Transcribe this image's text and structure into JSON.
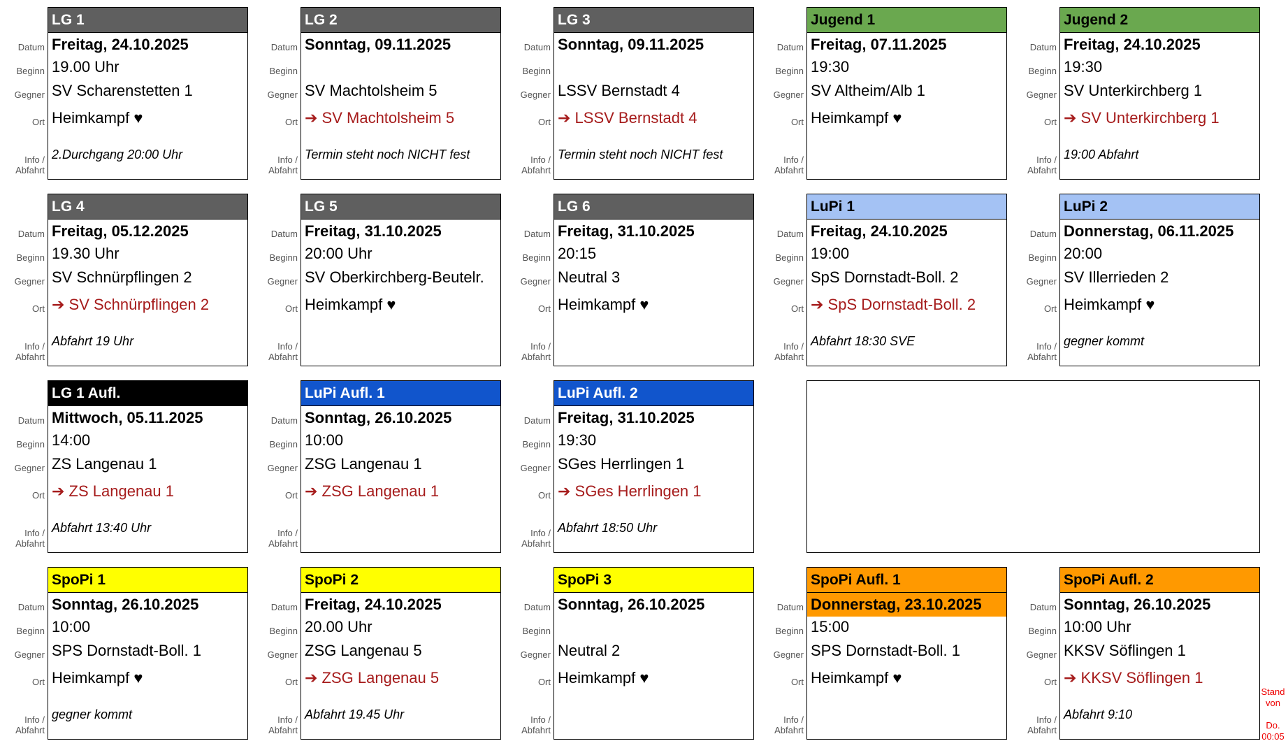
{
  "labels": {
    "date": "Datum",
    "time": "Beginn",
    "opponent": "Gegner",
    "place": "Ort",
    "info": "Info /",
    "info2": "Abfahrt"
  },
  "cards": [
    {
      "team": "LG 1",
      "header_color": "#5f5f5f",
      "header_text": "#ffffff",
      "date": "Freitag, 24.10.2025",
      "time": "19.00 Uhr",
      "opponent": "SV Scharenstetten 1",
      "place": "Heimkampf ♥",
      "away": false,
      "info": "2.Durchgang 20:00 Uhr"
    },
    {
      "team": "LG 2",
      "header_color": "#5f5f5f",
      "header_text": "#ffffff",
      "date": "Sonntag, 09.11.2025",
      "time": "",
      "opponent": "SV Machtolsheim 5",
      "place": "➔ SV Machtolsheim 5",
      "away": true,
      "info": "Termin steht noch NICHT fest"
    },
    {
      "team": "LG 3",
      "header_color": "#5f5f5f",
      "header_text": "#ffffff",
      "date": "Sonntag, 09.11.2025",
      "time": "",
      "opponent": "LSSV Bernstadt 4",
      "place": "➔ LSSV Bernstadt 4",
      "away": true,
      "info": "Termin steht noch NICHT fest"
    },
    {
      "team": "Jugend 1",
      "header_color": "#6aa84f",
      "header_text": "#000000",
      "date": "Freitag, 07.11.2025",
      "time": "19:30",
      "opponent": "SV Altheim/Alb 1",
      "place": "Heimkampf ♥",
      "away": false,
      "info": ""
    },
    {
      "team": "Jugend 2",
      "header_color": "#6aa84f",
      "header_text": "#000000",
      "date": "Freitag, 24.10.2025",
      "time": "19:30",
      "opponent": "SV Unterkirchberg 1",
      "place": "➔ SV Unterkirchberg 1",
      "away": true,
      "info": "19:00 Abfahrt"
    },
    {
      "team": "LG 4",
      "header_color": "#5f5f5f",
      "header_text": "#ffffff",
      "date": "Freitag, 05.12.2025",
      "time": "19.30 Uhr",
      "opponent": "SV Schnürpflingen 2",
      "place": "➔ SV Schnürpflingen 2",
      "away": true,
      "info": "Abfahrt 19 Uhr"
    },
    {
      "team": "LG 5",
      "header_color": "#5f5f5f",
      "header_text": "#ffffff",
      "date": "Freitag, 31.10.2025",
      "time": "20:00 Uhr",
      "opponent": "SV Oberkirchberg-Beutelr.",
      "place": "Heimkampf ♥",
      "away": false,
      "info": ""
    },
    {
      "team": "LG 6",
      "header_color": "#5f5f5f",
      "header_text": "#ffffff",
      "date": "Freitag, 31.10.2025",
      "time": "20:15",
      "opponent": "Neutral 3",
      "place": "Heimkampf ♥",
      "away": false,
      "info": ""
    },
    {
      "team": "LuPi 1",
      "header_color": "#a4c2f4",
      "header_text": "#000000",
      "date": "Freitag, 24.10.2025",
      "time": "19:00",
      "opponent": "SpS Dornstadt-Boll. 2",
      "place": "➔ SpS Dornstadt-Boll. 2",
      "away": true,
      "info": "Abfahrt 18:30 SVE"
    },
    {
      "team": "LuPi 2",
      "header_color": "#a4c2f4",
      "header_text": "#000000",
      "date": "Donnerstag, 06.11.2025",
      "time": "20:00",
      "opponent": "SV Illerrieden 2",
      "place": "Heimkampf ♥",
      "away": false,
      "info": "gegner kommt"
    },
    {
      "team": "LG 1 Aufl.",
      "header_color": "#000000",
      "header_text": "#ffffff",
      "date": "Mittwoch, 05.11.2025",
      "time": "14:00",
      "opponent": "ZS Langenau 1",
      "place": "➔ ZS Langenau 1",
      "away": true,
      "info": "Abfahrt 13:40 Uhr"
    },
    {
      "team": "LuPi Aufl. 1",
      "header_color": "#1155cc",
      "header_text": "#ffffff",
      "date": "Sonntag, 26.10.2025",
      "time": "10:00",
      "opponent": "ZSG Langenau 1",
      "place": "➔ ZSG Langenau 1",
      "away": true,
      "info": ""
    },
    {
      "team": "LuPi Aufl. 2",
      "header_color": "#1155cc",
      "header_text": "#ffffff",
      "date": "Freitag, 31.10.2025",
      "time": "19:30",
      "opponent": "SGes Herrlingen 1",
      "place": "➔ SGes Herrlingen 1",
      "away": true,
      "info": "Abfahrt 18:50 Uhr"
    },
    {
      "team": "SpoPi 1",
      "header_color": "#ffff00",
      "header_text": "#000000",
      "date": "Sonntag, 26.10.2025",
      "time": "10:00",
      "opponent": "SPS Dornstadt-Boll. 1",
      "place": "Heimkampf ♥",
      "away": false,
      "info": "gegner kommt"
    },
    {
      "team": "SpoPi 2",
      "header_color": "#ffff00",
      "header_text": "#000000",
      "date": "Freitag, 24.10.2025",
      "time": "20.00 Uhr",
      "opponent": "ZSG Langenau 5",
      "place": "➔ ZSG Langenau 5",
      "away": true,
      "info": "Abfahrt 19.45 Uhr"
    },
    {
      "team": "SpoPi 3",
      "header_color": "#ffff00",
      "header_text": "#000000",
      "date": "Sonntag, 26.10.2025",
      "time": "",
      "opponent": "Neutral 2",
      "place": "Heimkampf ♥",
      "away": false,
      "info": ""
    },
    {
      "team": "SpoPi Aufl. 1",
      "header_color": "#ff9900",
      "header_text": "#000000",
      "date_color": "#ff9900",
      "date": "Donnerstag, 23.10.2025",
      "time": "15:00",
      "opponent": "SPS Dornstadt-Boll. 1",
      "place": "Heimkampf ♥",
      "away": false,
      "info": ""
    },
    {
      "team": "SpoPi Aufl. 2",
      "header_color": "#ff9900",
      "header_text": "#000000",
      "date": "Sonntag, 26.10.2025",
      "time": "10:00 Uhr",
      "opponent": "KKSV Söflingen 1",
      "place": "➔ KKSV Söflingen 1",
      "away": true,
      "info": "Abfahrt 9:10"
    }
  ],
  "stand": {
    "line1": "Stand",
    "line2": "von",
    "line3": "Do.",
    "line4": "00:05"
  }
}
